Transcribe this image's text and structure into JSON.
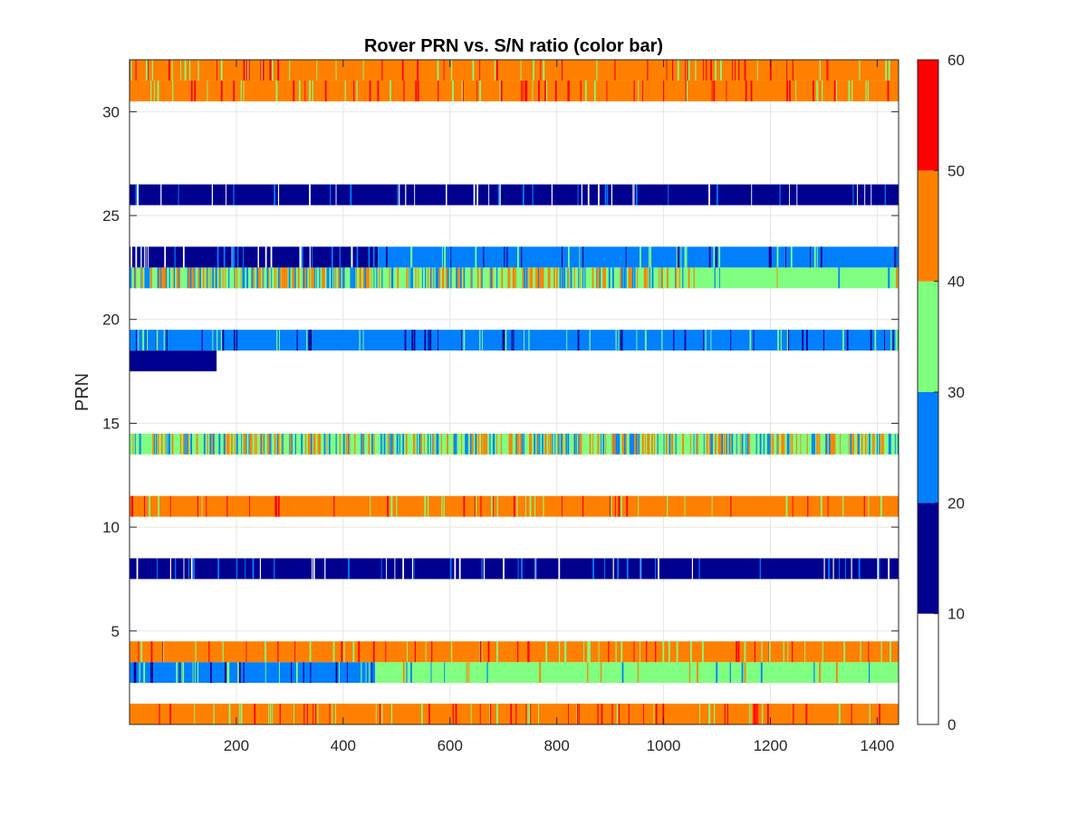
{
  "chart_data": {
    "type": "heatmap",
    "title": "Rover PRN vs. S/N ratio (color bar)",
    "xlabel": "",
    "ylabel": "PRN",
    "xlim": [
      0,
      1440
    ],
    "ylim": [
      0.5,
      32.5
    ],
    "x_ticks": [
      200,
      400,
      600,
      800,
      1000,
      1200,
      1400
    ],
    "y_ticks": [
      5,
      10,
      15,
      20,
      25,
      30
    ],
    "grid": true,
    "colorbar": {
      "range": [
        0,
        60
      ],
      "ticks": [
        0,
        10,
        20,
        30,
        40,
        50,
        60
      ],
      "bins": [
        {
          "from": 0,
          "to": 10,
          "color": "#ffffff"
        },
        {
          "from": 10,
          "to": 20,
          "color": "#00008f"
        },
        {
          "from": 20,
          "to": 30,
          "color": "#0080ff"
        },
        {
          "from": 30,
          "to": 40,
          "color": "#80ff80"
        },
        {
          "from": 40,
          "to": 50,
          "color": "#ff8000"
        },
        {
          "from": 50,
          "to": 60,
          "color": "#ff0000"
        }
      ]
    },
    "rows": [
      {
        "prn": 1,
        "segments": [
          {
            "start": 0,
            "end": 1440,
            "base_snr": 45,
            "alt_snrs": [
              35,
              55
            ],
            "mix": 0.1
          }
        ]
      },
      {
        "prn": 3,
        "segments": [
          {
            "start": 0,
            "end": 460,
            "base_snr": 25,
            "alt_snrs": [
              15,
              35
            ],
            "mix": 0.15
          },
          {
            "start": 460,
            "end": 1440,
            "base_snr": 35,
            "alt_snrs": [
              25,
              45
            ],
            "mix": 0.06
          }
        ]
      },
      {
        "prn": 4,
        "segments": [
          {
            "start": 0,
            "end": 1440,
            "base_snr": 45,
            "alt_snrs": [
              35,
              55
            ],
            "mix": 0.12
          }
        ]
      },
      {
        "prn": 8,
        "segments": [
          {
            "start": 0,
            "end": 1440,
            "base_snr": 15,
            "alt_snrs": [
              25,
              5
            ],
            "mix": 0.06
          }
        ]
      },
      {
        "prn": 11,
        "segments": [
          {
            "start": 0,
            "end": 1440,
            "base_snr": 45,
            "alt_snrs": [
              35,
              55
            ],
            "mix": 0.08
          }
        ]
      },
      {
        "prn": 14,
        "segments": [
          {
            "start": 0,
            "end": 1440,
            "base_snr": 35,
            "alt_snrs": [
              45,
              25
            ],
            "mix": 0.4
          }
        ]
      },
      {
        "prn": 18,
        "segments": [
          {
            "start": 0,
            "end": 163,
            "base_snr": 15,
            "alt_snrs": [
              25
            ],
            "mix": 0.03
          }
        ]
      },
      {
        "prn": 19,
        "segments": [
          {
            "start": 0,
            "end": 1440,
            "base_snr": 25,
            "alt_snrs": [
              15,
              35
            ],
            "mix": 0.12
          }
        ]
      },
      {
        "prn": 22,
        "segments": [
          {
            "start": 0,
            "end": 1060,
            "base_snr": 35,
            "alt_snrs": [
              45,
              25
            ],
            "mix": 0.45
          },
          {
            "start": 1060,
            "end": 1440,
            "base_snr": 35,
            "alt_snrs": [
              25,
              45
            ],
            "mix": 0.05
          }
        ]
      },
      {
        "prn": 23,
        "segments": [
          {
            "start": 0,
            "end": 465,
            "base_snr": 15,
            "alt_snrs": [
              25,
              5
            ],
            "mix": 0.1
          },
          {
            "start": 465,
            "end": 1440,
            "base_snr": 25,
            "alt_snrs": [
              15,
              35
            ],
            "mix": 0.08
          }
        ]
      },
      {
        "prn": 26,
        "segments": [
          {
            "start": 0,
            "end": 1440,
            "base_snr": 15,
            "alt_snrs": [
              25,
              5
            ],
            "mix": 0.08
          }
        ]
      },
      {
        "prn": 31,
        "segments": [
          {
            "start": 0,
            "end": 1440,
            "base_snr": 45,
            "alt_snrs": [
              35,
              55
            ],
            "mix": 0.1
          }
        ]
      },
      {
        "prn": 32,
        "segments": [
          {
            "start": 0,
            "end": 1440,
            "base_snr": 45,
            "alt_snrs": [
              35,
              55
            ],
            "mix": 0.12
          }
        ]
      }
    ]
  }
}
